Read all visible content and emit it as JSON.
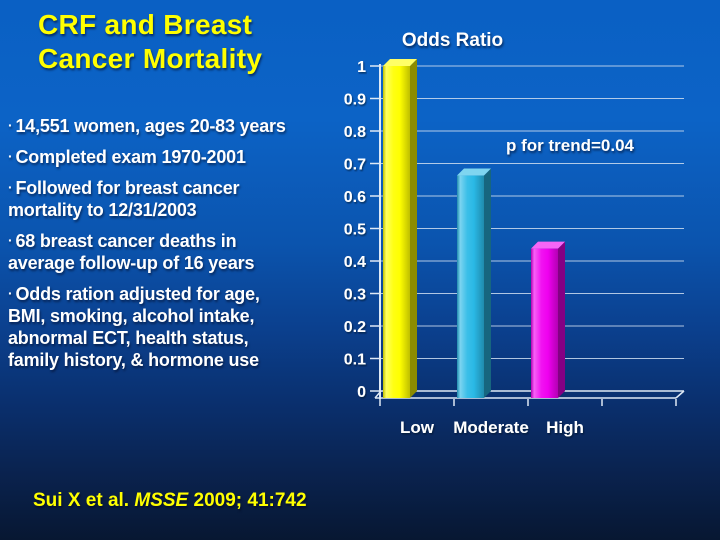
{
  "slide": {
    "title": {
      "line1": "CRF and Breast",
      "line2": "Cancer Mortality"
    },
    "bullet_char": "·",
    "bullets": [
      "14,551 women, ages 20-83 years",
      "Completed exam 1970-2001",
      "Followed for breast cancer mortality to 12/31/2003",
      "68 breast cancer deaths in average follow-up of 16 years",
      "Odds ration adjusted for age, BMI, smoking, alcohol intake, abnormal ECT, health status, family history, & hormone use"
    ],
    "citation": {
      "authors": "Sui X et al. ",
      "journal": "MSSE",
      "rest": " 2009; 41:742"
    }
  },
  "chart_data": {
    "type": "bar",
    "style": "3d",
    "title": "Odds Ratio",
    "annotation": "p for trend=0.04",
    "categories": [
      "Low",
      "Moderate",
      "High"
    ],
    "values": [
      1.0,
      0.67,
      0.45
    ],
    "bar_colors": [
      "#ffff00",
      "#2ab9e6",
      "#f000f0"
    ],
    "xlabel": "",
    "ylabel": "",
    "ylim": [
      0,
      1
    ],
    "ytick_labels": [
      "0",
      "0.1",
      "0.2",
      "0.3",
      "0.4",
      "0.5",
      "0.6",
      "0.7",
      "0.8",
      "0.9",
      "1"
    ],
    "grid": true,
    "legend": false
  },
  "colors": {
    "background_top": "#0a60c4",
    "background_bottom": "#071732",
    "title_text": "#ffff00",
    "body_text": "#ffffff",
    "citation_text": "#ffff00",
    "axis": "#dfe9f5",
    "gridline": "#cfdef0"
  }
}
